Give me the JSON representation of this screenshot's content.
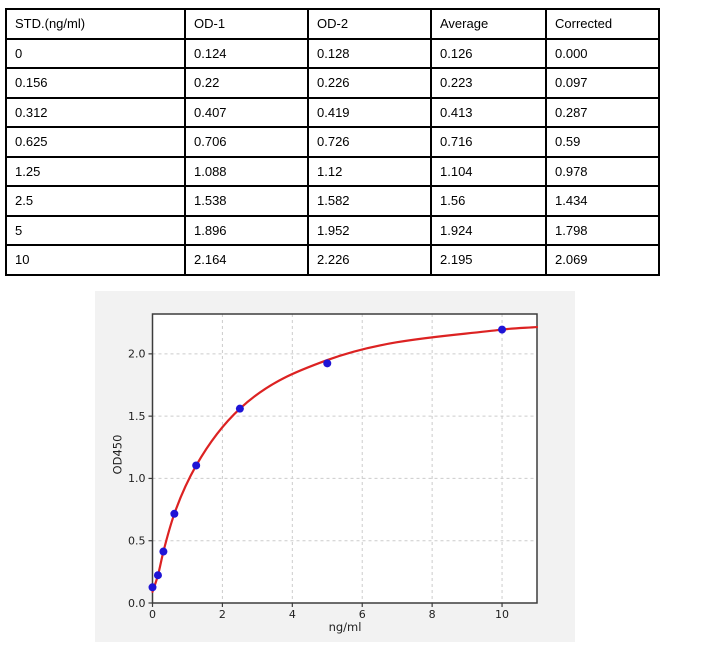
{
  "table": {
    "headers": [
      "STD.(ng/ml)",
      "OD-1",
      "OD-2",
      "Average",
      "Corrected"
    ],
    "rows": [
      [
        "0",
        "0.124",
        "0.128",
        "0.126",
        "0.000"
      ],
      [
        "0.156",
        "0.22",
        "0.226",
        "0.223",
        "0.097"
      ],
      [
        "0.312",
        "0.407",
        "0.419",
        "0.413",
        "0.287"
      ],
      [
        "0.625",
        "0.706",
        "0.726",
        "0.716",
        "0.59"
      ],
      [
        "1.25",
        "1.088",
        "1.12",
        "1.104",
        "0.978"
      ],
      [
        "2.5",
        "1.538",
        "1.582",
        "1.56",
        "1.434"
      ],
      [
        "5",
        "1.896",
        "1.952",
        "1.924",
        "1.798"
      ],
      [
        "10",
        "2.164",
        "2.226",
        "2.195",
        "2.069"
      ]
    ]
  },
  "chart_data": {
    "type": "scatter",
    "xlabel": "ng/ml",
    "ylabel": "OD450",
    "x": [
      0,
      0.156,
      0.312,
      0.625,
      1.25,
      2.5,
      5,
      10
    ],
    "y": [
      0.126,
      0.223,
      0.413,
      0.716,
      1.104,
      1.56,
      1.924,
      2.195
    ],
    "xlim": [
      0,
      11
    ],
    "ylim": [
      0,
      2.32
    ],
    "xticks": [
      0,
      2,
      4,
      6,
      8,
      10
    ],
    "xtick_labels": [
      "0",
      "2",
      "4",
      "6",
      "8",
      "10"
    ],
    "yticks": [
      0,
      0.5,
      1,
      1.5,
      2
    ],
    "ytick_labels": [
      "0.0",
      "0.5",
      "1.0",
      "1.5",
      "2.0"
    ],
    "grid": true,
    "curve": {
      "kind": "fitted-standard-curve",
      "x": [
        0,
        0.156,
        0.312,
        0.625,
        1.25,
        2.5,
        5,
        10,
        11
      ],
      "y": [
        0.09,
        0.223,
        0.413,
        0.716,
        1.104,
        1.56,
        1.95,
        2.195,
        2.215
      ]
    },
    "colors": {
      "point": "#1f14d6",
      "curve": "#dc2222",
      "figure_bg": "#f2f2f2",
      "plot_bg": "#ffffff",
      "grid": "#cccccc",
      "spine": "#3c3c3c",
      "tick_label": "#1f1f1f"
    }
  }
}
